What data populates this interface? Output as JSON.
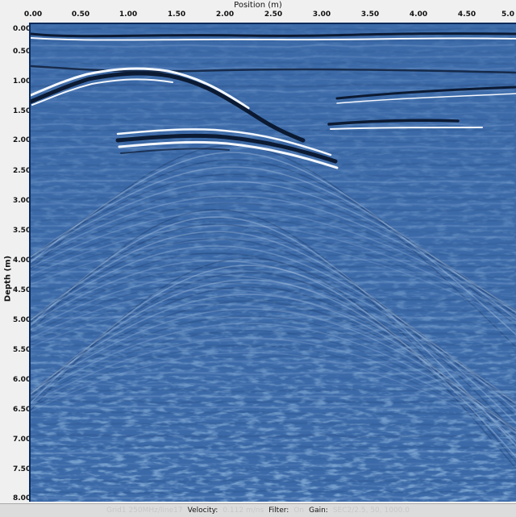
{
  "axes": {
    "x_title": "Position (m)",
    "y_title": "Depth (m)",
    "x_ticks": [
      "0.00",
      "0.50",
      "1.00",
      "1.50",
      "2.00",
      "2.50",
      "3.00",
      "3.50",
      "4.00",
      "4.50",
      "5.0"
    ],
    "y_ticks": [
      "0.00",
      "0.50",
      "1.00",
      "1.50",
      "2.00",
      "2.50",
      "3.00",
      "3.50",
      "4.00",
      "4.50",
      "5.00",
      "5.50",
      "6.00",
      "6.50",
      "7.00",
      "7.50",
      "8.00"
    ]
  },
  "status": {
    "file": "Grid1 250MHz/line17",
    "velocity_label": "Velocity:",
    "velocity_value": "0.112 m/ns",
    "filter_label": "Filter:",
    "filter_value": "On",
    "gain_label": "Gain:",
    "gain_value": "SEC2/2.5, 50, 1000.0"
  },
  "colors": {
    "background": "#3c6aa8",
    "dark_band": "#0b1a33",
    "light_band": "#f4f8ff"
  }
}
